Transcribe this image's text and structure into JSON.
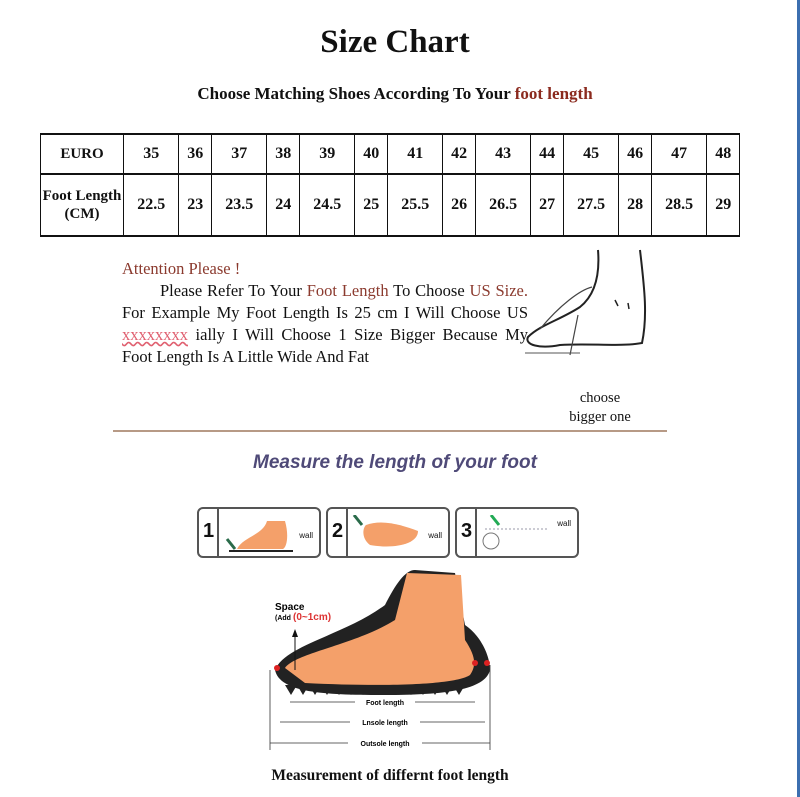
{
  "title": "Size Chart",
  "subtitle": {
    "prefix": "Choose Matching Shoes According To Your ",
    "highlight": "foot length"
  },
  "table": {
    "row_headers": [
      "EURO",
      "Foot Length (CM)"
    ],
    "euro": [
      "35",
      "36",
      "37",
      "38",
      "39",
      "40",
      "41",
      "42",
      "43",
      "44",
      "45",
      "46",
      "47",
      "48"
    ],
    "foot_length_cm": [
      "22.5",
      "23",
      "23.5",
      "24",
      "24.5",
      "25",
      "25.5",
      "26",
      "26.5",
      "27",
      "27.5",
      "28",
      "28.5",
      "29"
    ]
  },
  "attention": {
    "heading": "Attention Please !",
    "t1": "Please Refer To Your ",
    "h1": "Foot Length",
    "t2": " To Choose ",
    "h2": "US Size.",
    "t3": " For Example My Foot Length Is 25 cm I Will Choose US ",
    "h3": "xxxxxxxx",
    "t4": " ially I Will Choose 1 Size Bigger Because My Foot Length Is A Little Wide And Fat"
  },
  "choose_note": "choose bigger one",
  "measure_title": "Measure the length of your foot",
  "steps": [
    {
      "num": "1",
      "label": "wall"
    },
    {
      "num": "2",
      "label": "wall"
    },
    {
      "num": "3",
      "label": "wall"
    }
  ],
  "diagram": {
    "space_label": "Space",
    "space_add": "(Add",
    "space_range": "(0~1cm)",
    "foot_length": "Foot length",
    "insole_length": "Lnsole length",
    "outsole_length": "Outsole length"
  },
  "footer": "Measurement of differnt foot length",
  "colors": {
    "accent": "#8b2a1e",
    "measure_title": "#4f4a78",
    "skin": "#f4a06a",
    "edge": "#3c6fb0"
  }
}
